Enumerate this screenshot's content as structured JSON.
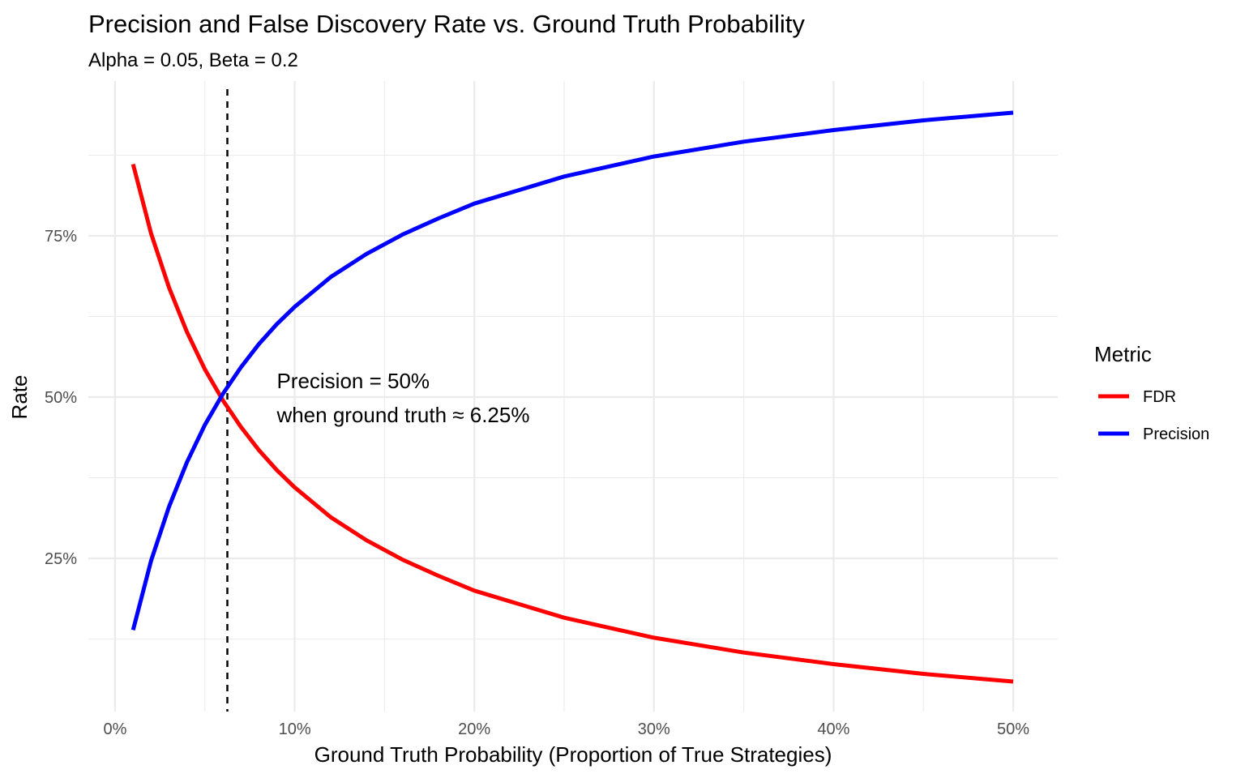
{
  "chart_data": {
    "type": "line",
    "title": "Precision and False Discovery Rate vs. Ground Truth Probability",
    "subtitle": "Alpha = 0.05, Beta = 0.2",
    "xlabel": "Ground Truth Probability (Proportion of True Strategies)",
    "ylabel": "Rate",
    "xlim": [
      0,
      0.5
    ],
    "ylim": [
      0.05,
      0.95
    ],
    "grid": true,
    "x_ticks": [
      {
        "value": 0,
        "label": "0%"
      },
      {
        "value": 0.1,
        "label": "10%"
      },
      {
        "value": 0.2,
        "label": "20%"
      },
      {
        "value": 0.3,
        "label": "30%"
      },
      {
        "value": 0.4,
        "label": "40%"
      },
      {
        "value": 0.5,
        "label": "50%"
      }
    ],
    "y_ticks": [
      {
        "value": 0.25,
        "label": "25%"
      },
      {
        "value": 0.5,
        "label": "50%"
      },
      {
        "value": 0.75,
        "label": "75%"
      }
    ],
    "x": [
      0.01,
      0.02,
      0.03,
      0.04,
      0.05,
      0.06,
      0.07,
      0.08,
      0.09,
      0.1,
      0.12,
      0.14,
      0.16,
      0.18,
      0.2,
      0.25,
      0.3,
      0.35,
      0.4,
      0.45,
      0.5
    ],
    "series": [
      {
        "name": "FDR",
        "color": "#ff0000",
        "values": [
          0.861,
          0.754,
          0.67,
          0.601,
          0.543,
          0.495,
          0.454,
          0.418,
          0.387,
          0.36,
          0.314,
          0.278,
          0.248,
          0.223,
          0.2,
          0.158,
          0.127,
          0.104,
          0.086,
          0.071,
          0.059
        ]
      },
      {
        "name": "Precision",
        "color": "#0000ff",
        "values": [
          0.139,
          0.246,
          0.33,
          0.399,
          0.457,
          0.505,
          0.546,
          0.582,
          0.613,
          0.64,
          0.686,
          0.722,
          0.752,
          0.777,
          0.8,
          0.842,
          0.873,
          0.896,
          0.914,
          0.929,
          0.941
        ]
      }
    ],
    "reference_line": {
      "x": 0.0625,
      "style": "dashed",
      "color": "#000000"
    },
    "annotation": {
      "line1": "Precision = 50%",
      "line2": "when ground truth ≈ 6.25%",
      "x": 0.09,
      "y": 0.5
    },
    "legend": {
      "title": "Metric",
      "position": "right"
    }
  }
}
